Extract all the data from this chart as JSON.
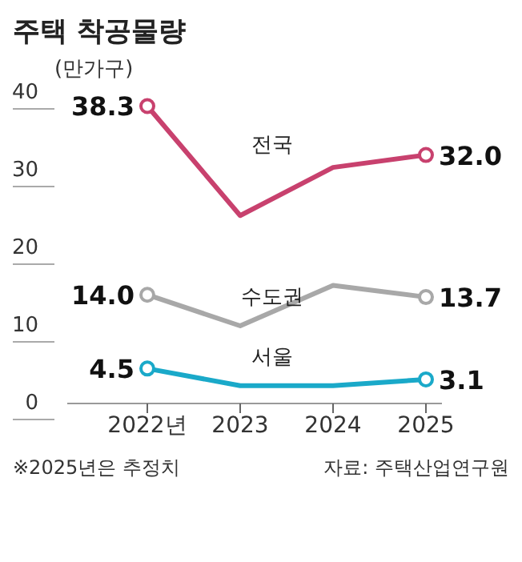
{
  "chart_data": {
    "type": "line",
    "title": "주택 착공물량",
    "ylabel": "(만가구)",
    "categories": [
      "2022년",
      "2023",
      "2024",
      "2025"
    ],
    "series": [
      {
        "name": "전국",
        "color": "#c8416e",
        "values": [
          38.3,
          24.2,
          30.4,
          32.0
        ],
        "value_labels": [
          "38.3",
          null,
          null,
          "32.0"
        ]
      },
      {
        "name": "수도권",
        "color": "#a8a8a8",
        "values": [
          14.0,
          10.0,
          15.2,
          13.7
        ],
        "value_labels": [
          "14.0",
          null,
          null,
          "13.7"
        ]
      },
      {
        "name": "서울",
        "color": "#1aa9c9",
        "values": [
          4.5,
          2.3,
          2.3,
          3.1
        ],
        "value_labels": [
          "4.5",
          null,
          null,
          "3.1"
        ]
      }
    ],
    "ylim": [
      0,
      40
    ],
    "yticks": [
      0,
      10,
      20,
      30,
      40
    ],
    "marker": "circle",
    "line_style": "solid",
    "annotations": [
      "※2025년은 추정치",
      "자료: 주택산업연구원"
    ]
  }
}
